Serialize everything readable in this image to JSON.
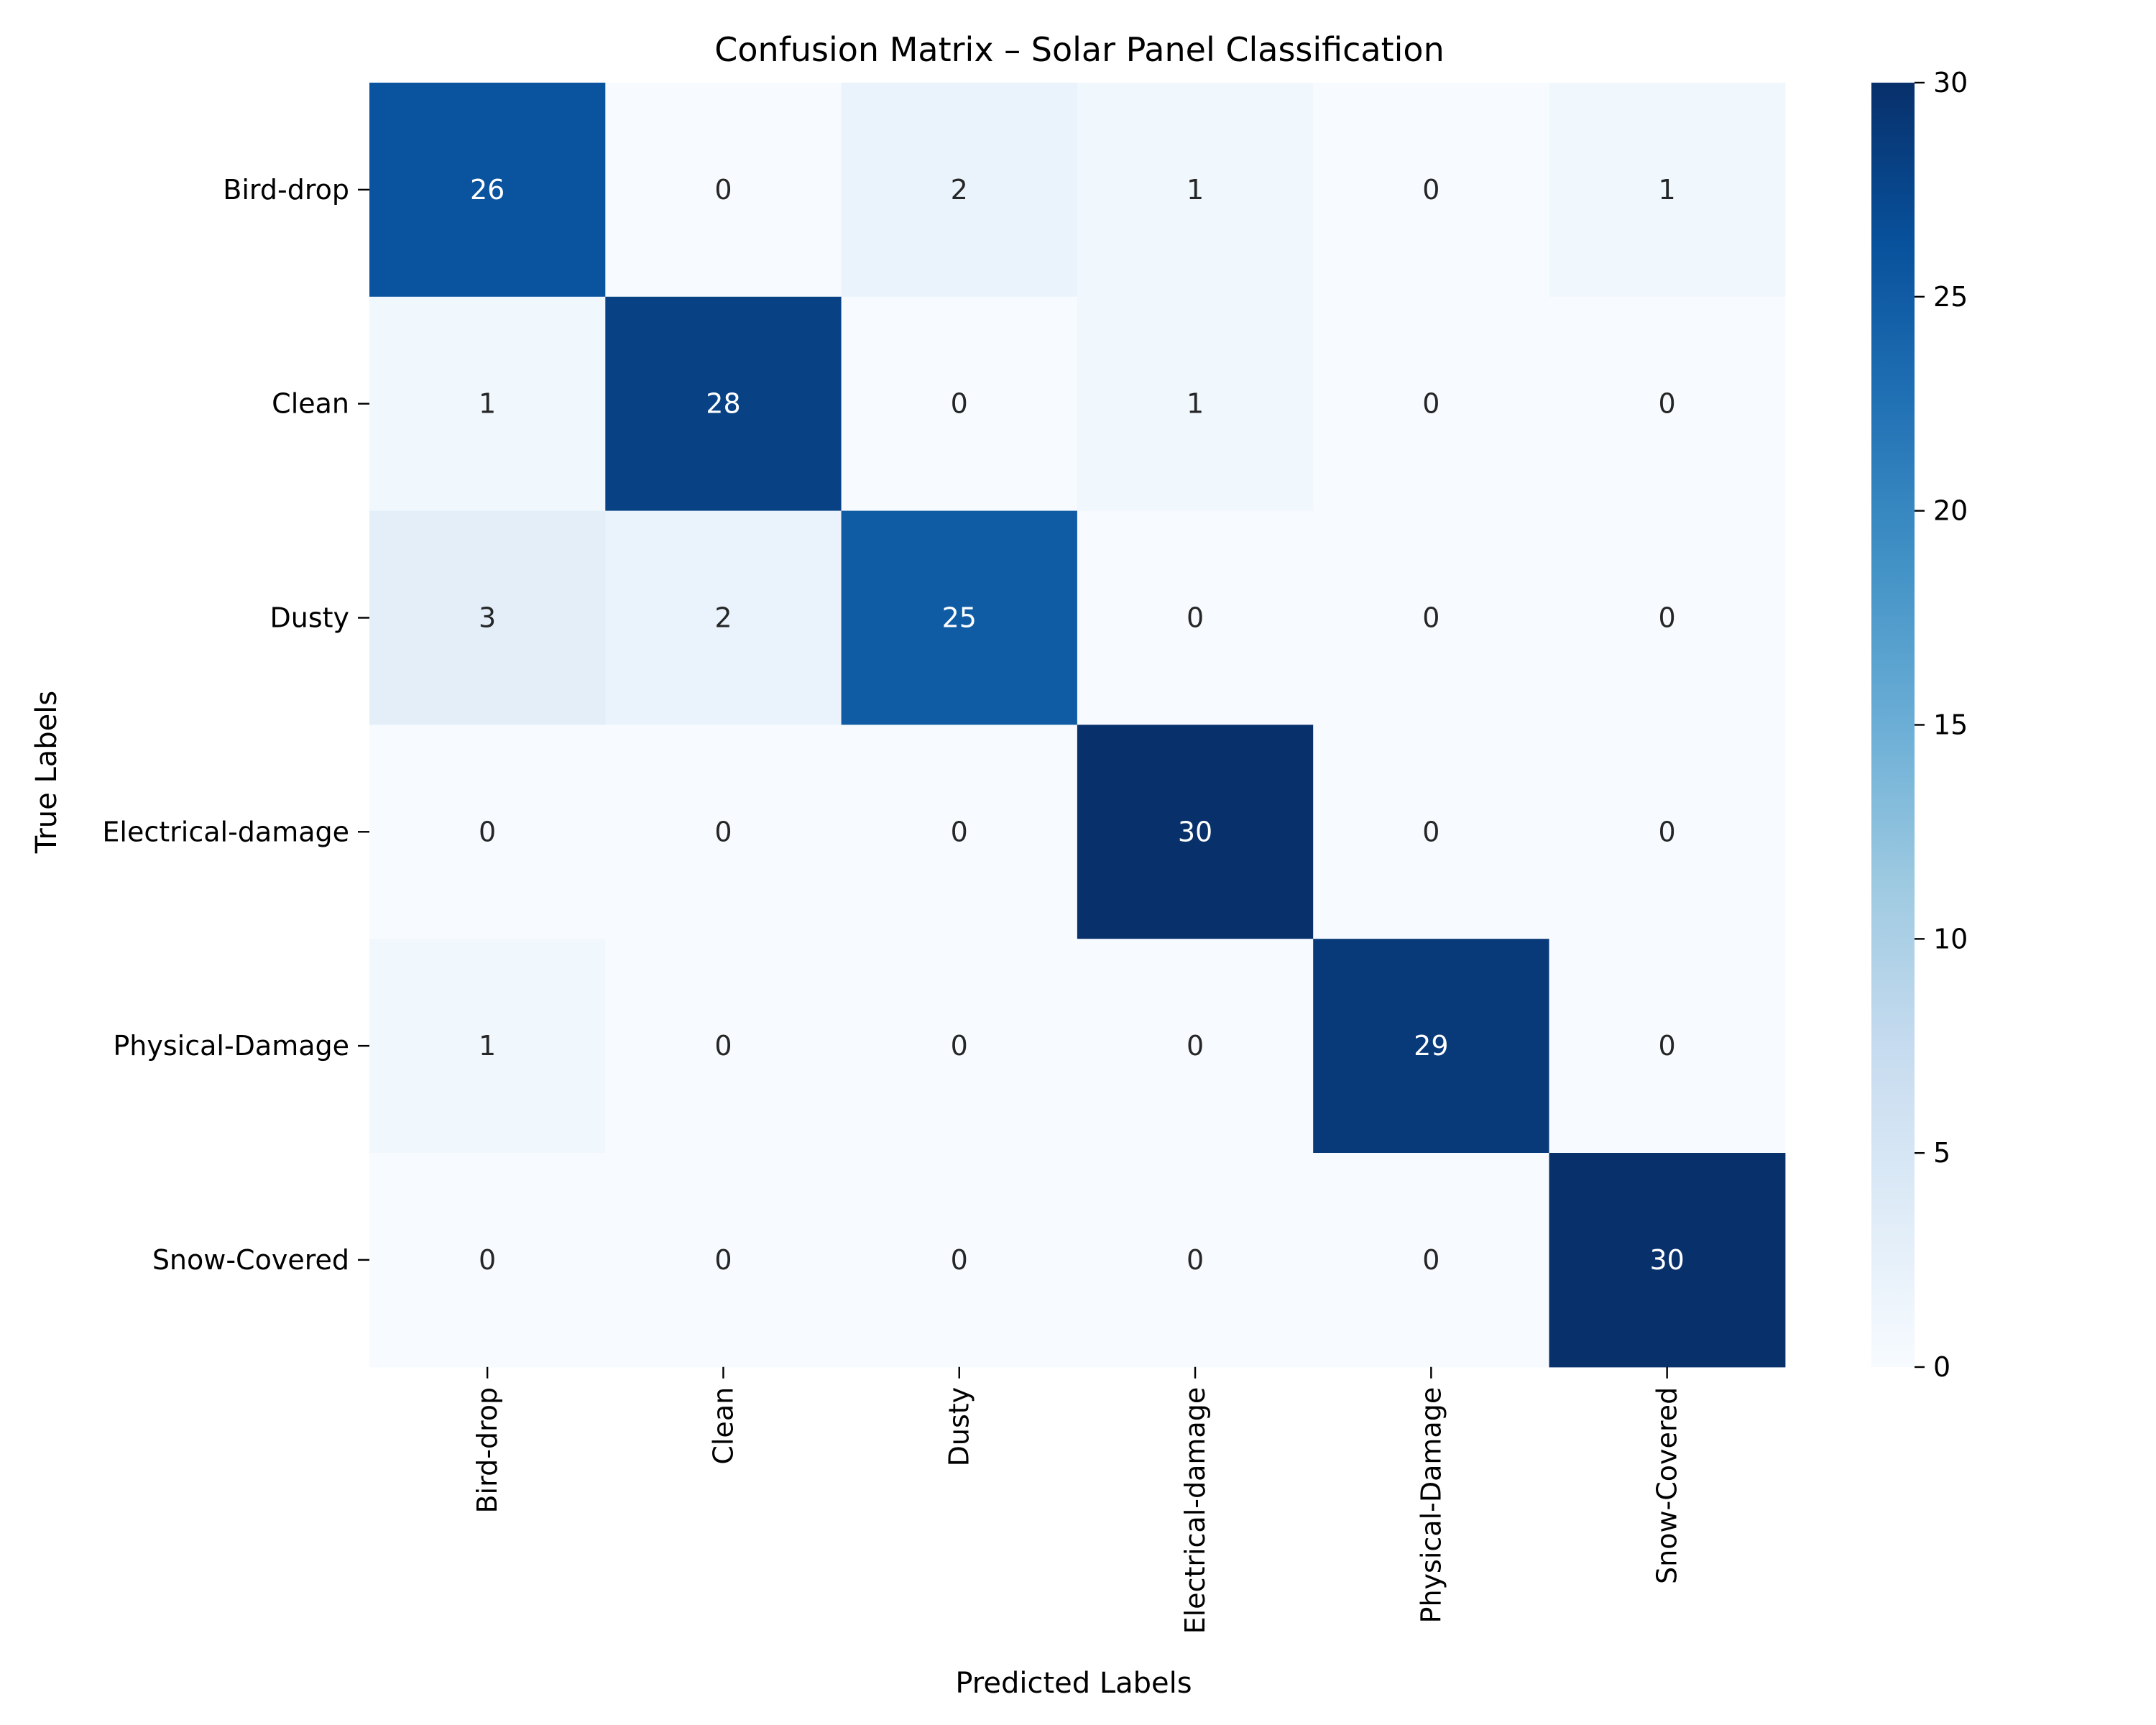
{
  "chart_data": {
    "type": "heatmap",
    "title": "Confusion Matrix – Solar Panel Classification",
    "xlabel": "Predicted Labels",
    "ylabel": "True Labels",
    "x_categories": [
      "Bird-drop",
      "Clean",
      "Dusty",
      "Electrical-damage",
      "Physical-Damage",
      "Snow-Covered"
    ],
    "y_categories": [
      "Bird-drop",
      "Clean",
      "Dusty",
      "Electrical-damage",
      "Physical-Damage",
      "Snow-Covered"
    ],
    "values": [
      [
        26,
        0,
        2,
        1,
        0,
        1
      ],
      [
        1,
        28,
        0,
        1,
        0,
        0
      ],
      [
        3,
        2,
        25,
        0,
        0,
        0
      ],
      [
        0,
        0,
        0,
        30,
        0,
        0
      ],
      [
        1,
        0,
        0,
        0,
        29,
        0
      ],
      [
        0,
        0,
        0,
        0,
        0,
        30
      ]
    ],
    "colorbar": {
      "range": [
        0,
        30
      ],
      "ticks": [
        0,
        5,
        10,
        15,
        20,
        25,
        30
      ],
      "colormap": "Blues"
    }
  }
}
